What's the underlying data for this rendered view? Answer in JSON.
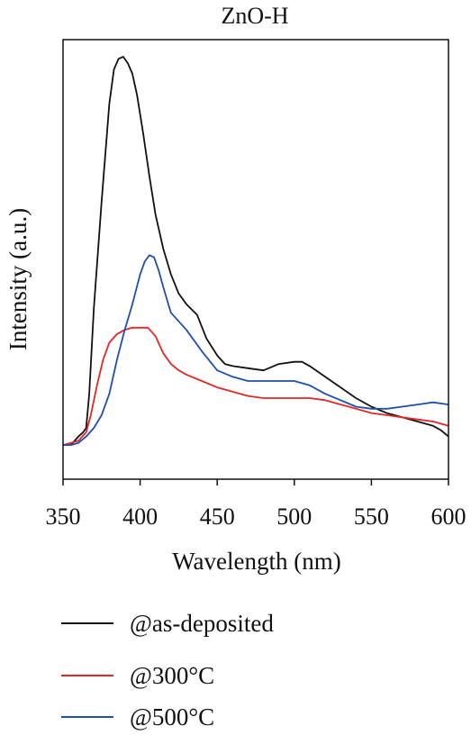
{
  "chart_data": {
    "type": "line",
    "title": "ZnO-H",
    "xlabel": "Wavelength (nm)",
    "ylabel": "Intensity (a.u.)",
    "xlim": [
      350,
      600
    ],
    "ylim": [
      0,
      1.03
    ],
    "xticks": [
      350,
      400,
      450,
      500,
      550,
      600
    ],
    "y_tick_labels": false,
    "grid": false,
    "legend_position": "below plot",
    "series": [
      {
        "name": "@as-deposited",
        "color": "#111111",
        "x": [
          350,
          355,
          360,
          363,
          365,
          367,
          370,
          375,
          380,
          383,
          386,
          389,
          392,
          395,
          398,
          402,
          406,
          410,
          415,
          420,
          425,
          430,
          437,
          443,
          450,
          455,
          460,
          470,
          480,
          490,
          500,
          505,
          510,
          520,
          530,
          540,
          550,
          560,
          570,
          580,
          590,
          595,
          600
        ],
        "y": [
          0.08,
          0.08,
          0.1,
          0.11,
          0.12,
          0.2,
          0.4,
          0.65,
          0.88,
          0.96,
          0.985,
          0.99,
          0.975,
          0.95,
          0.9,
          0.81,
          0.71,
          0.62,
          0.54,
          0.48,
          0.435,
          0.41,
          0.385,
          0.33,
          0.29,
          0.27,
          0.265,
          0.26,
          0.255,
          0.27,
          0.275,
          0.275,
          0.265,
          0.24,
          0.215,
          0.19,
          0.17,
          0.155,
          0.145,
          0.135,
          0.125,
          0.115,
          0.1
        ]
      },
      {
        "name": "@300°C",
        "color": "#e52626",
        "x": [
          350,
          355,
          360,
          365,
          368,
          372,
          376,
          380,
          385,
          390,
          395,
          400,
          405,
          410,
          415,
          420,
          425,
          430,
          440,
          450,
          460,
          470,
          480,
          490,
          500,
          510,
          520,
          530,
          540,
          550,
          560,
          570,
          580,
          590,
          600
        ],
        "y": [
          0.08,
          0.085,
          0.09,
          0.11,
          0.15,
          0.22,
          0.28,
          0.32,
          0.34,
          0.35,
          0.355,
          0.355,
          0.355,
          0.335,
          0.295,
          0.27,
          0.255,
          0.245,
          0.23,
          0.215,
          0.205,
          0.195,
          0.19,
          0.19,
          0.19,
          0.19,
          0.185,
          0.175,
          0.165,
          0.155,
          0.15,
          0.145,
          0.14,
          0.135,
          0.125
        ]
      },
      {
        "name": "@500°C",
        "color": "#1e4fae",
        "x": [
          350,
          355,
          360,
          365,
          370,
          375,
          380,
          385,
          390,
          395,
          400,
          403,
          406,
          409,
          412,
          415,
          420,
          430,
          440,
          450,
          460,
          470,
          480,
          490,
          500,
          510,
          520,
          530,
          540,
          550,
          560,
          570,
          580,
          590,
          600
        ],
        "y": [
          0.08,
          0.08,
          0.085,
          0.1,
          0.12,
          0.15,
          0.2,
          0.28,
          0.35,
          0.41,
          0.48,
          0.51,
          0.525,
          0.52,
          0.49,
          0.45,
          0.39,
          0.35,
          0.3,
          0.255,
          0.24,
          0.23,
          0.23,
          0.23,
          0.23,
          0.22,
          0.2,
          0.185,
          0.17,
          0.165,
          0.165,
          0.17,
          0.175,
          0.18,
          0.175
        ]
      }
    ]
  }
}
